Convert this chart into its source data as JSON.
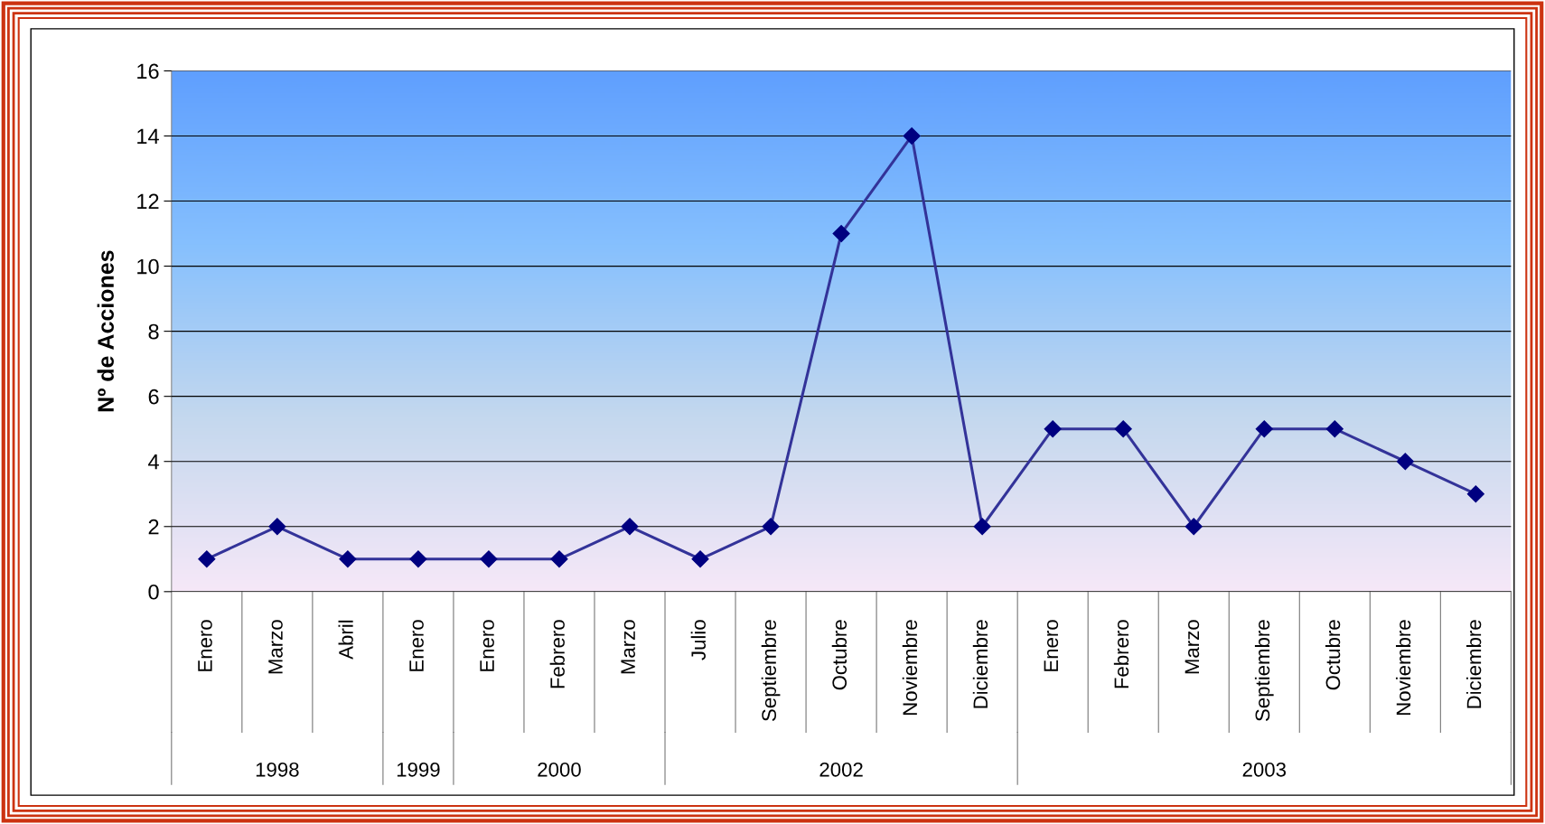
{
  "chart_data": {
    "type": "line",
    "ylabel": "Nº de Acciones",
    "categories": [
      "Enero",
      "Marzo",
      "Abril",
      "Enero",
      "Enero",
      "Febrero",
      "Marzo",
      "Julio",
      "Septiembre",
      "Octubre",
      "Noviembre",
      "Diciembre",
      "Enero",
      "Febrero",
      "Marzo",
      "Septiembre",
      "Octubre",
      "Noviembre",
      "Diciembre"
    ],
    "series": [
      {
        "color": "#333399",
        "values": [
          1,
          2,
          1,
          1,
          1,
          1,
          2,
          1,
          2,
          11,
          14,
          2,
          5,
          5,
          2,
          5,
          5,
          4,
          3
        ]
      }
    ],
    "marker": "diamond",
    "ylim": [
      0,
      16
    ],
    "yticks": [
      0,
      2,
      4,
      6,
      8,
      10,
      12,
      14,
      16
    ],
    "grid": "y",
    "annotations": [
      "1998",
      "1999",
      "2000",
      "2002",
      "2003"
    ]
  }
}
